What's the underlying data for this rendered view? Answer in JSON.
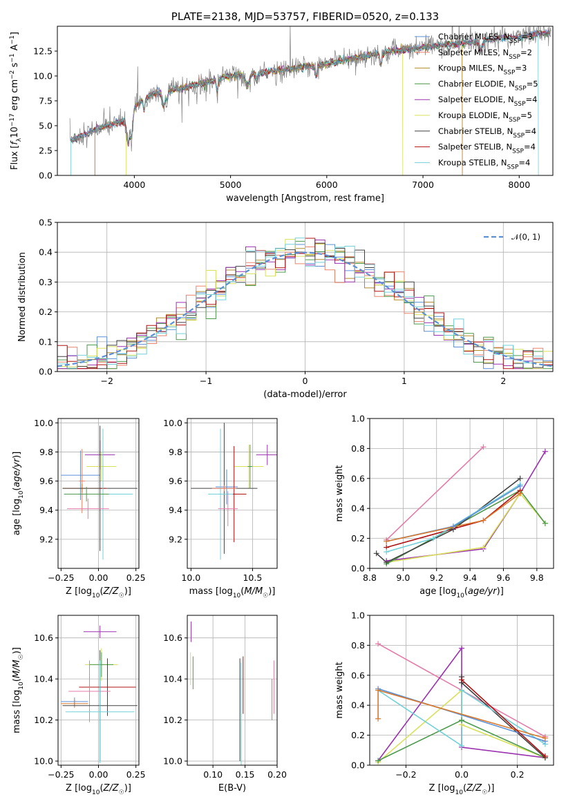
{
  "colors": {
    "Chabrier MILES": "#5b8fd6",
    "Salpeter MILES": "#e8836a",
    "Kroupa MILES": "#b08a2a",
    "Chabrier ELODIE": "#4c9a4c",
    "Salpeter ELODIE": "#9b30b0",
    "Kroupa ELODIE": "#d8e05a",
    "Chabrier STELIB": "#404040",
    "Salpeter STELIB": "#b01010",
    "Kroupa STELIB": "#70d0d8",
    "pink": "#e57aa8",
    "orange": "#d9782a",
    "normal": "#5b8fd6"
  },
  "chart_data": [
    {
      "id": "spectrum",
      "type": "line",
      "title": "PLATE=2138, MJD=53757, FIBERID=0520, z=0.133",
      "xlabel": "wavelength [Angstrom, rest frame]",
      "ylabel": "Flux [f_λ 10^-17 erg cm^-2 s^-1 A^-1]",
      "xlim": [
        3200,
        8350
      ],
      "ylim": [
        0,
        15
      ],
      "xticks": [
        "4000",
        "5000",
        "6000",
        "7000",
        "8000"
      ],
      "yticks": [
        "0.0",
        "2.5",
        "5.0",
        "7.5",
        "10.0",
        "12.5"
      ],
      "data_color": "#808080",
      "legend": [
        {
          "label": "Chabrier MILES, N_SSP=3"
        },
        {
          "label": "Salpeter MILES, N_SSP=2"
        },
        {
          "label": "Kroupa MILES, N_SSP=3"
        },
        {
          "label": "Chabrier ELODIE, N_SSP=5"
        },
        {
          "label": "Salpeter ELODIE, N_SSP=4"
        },
        {
          "label": "Kroupa ELODIE, N_SSP=5"
        },
        {
          "label": "Chabrier STELIB, N_SSP=4"
        },
        {
          "label": "Salpeter STELIB, N_SSP=4"
        },
        {
          "label": "Kroupa STELIB, N_SSP=4"
        }
      ],
      "continuum": [
        [
          3350,
          3.6
        ],
        [
          3500,
          4.2
        ],
        [
          3700,
          5.0
        ],
        [
          3900,
          5.5
        ],
        [
          4000,
          7.0
        ],
        [
          4200,
          8.2
        ],
        [
          4500,
          8.8
        ],
        [
          4800,
          9.5
        ],
        [
          5000,
          10.0
        ],
        [
          5300,
          10.3
        ],
        [
          5600,
          10.7
        ],
        [
          6000,
          11.2
        ],
        [
          6300,
          11.8
        ],
        [
          6600,
          12.4
        ],
        [
          7000,
          12.9
        ],
        [
          7400,
          13.3
        ],
        [
          7800,
          13.8
        ],
        [
          8000,
          13.9
        ],
        [
          8200,
          14.3
        ]
      ],
      "model_cutoffs": [
        {
          "model": "Salpeter MILES",
          "from": 3590,
          "to": 7410
        },
        {
          "model": "Kroupa MILES",
          "from": 3590,
          "to": 7410
        },
        {
          "model": "Kroupa ELODIE",
          "from": 3915,
          "to": 6790
        },
        {
          "model": "Kroupa STELIB",
          "from": 3340,
          "to": 8200
        }
      ]
    },
    {
      "id": "residuals",
      "type": "step",
      "xlabel": "(data-model)/error",
      "ylabel": "Normed distribution",
      "xlim": [
        -2.5,
        2.5
      ],
      "ylim": [
        0,
        0.5
      ],
      "xticks": [
        "−2",
        "−1",
        "0",
        "1",
        "2"
      ],
      "yticks": [
        "0.0",
        "0.1",
        "0.2",
        "0.3",
        "0.4",
        "0.5"
      ],
      "legend_label": "𝒩(0, 1)",
      "bin_width": 0.1
    },
    {
      "id": "age-vs-Z",
      "type": "errorbar",
      "xlabel": "Z [log10(Z/Z☉)]",
      "ylabel": "age  [log10(age/yr)]",
      "xlim": [
        -0.27,
        0.27
      ],
      "ylim": [
        9.0,
        10.03
      ],
      "xticks": [
        "−0.25",
        "0.00",
        "0.25"
      ],
      "yticks": [
        "9.2",
        "9.4",
        "9.6",
        "9.8",
        "10.0"
      ],
      "points": [
        {
          "c": "Salpeter ELODIE",
          "x": 0.01,
          "xerr": 0.1,
          "y": 9.78,
          "yerr": 0.1
        },
        {
          "c": "Kroupa ELODIE",
          "x": 0.02,
          "xerr": 0.1,
          "y": 9.7,
          "yerr": 0.1
        },
        {
          "c": "Chabrier MILES",
          "x": -0.12,
          "xerr": 0.13,
          "y": 9.64,
          "yerr": 0.17
        },
        {
          "c": "Salpeter MILES",
          "x": -0.11,
          "xerr": 0.02,
          "y": 9.6,
          "yerr": 0.22
        },
        {
          "c": "orange",
          "x": -0.11,
          "xerr": 0.13,
          "y": 9.55,
          "yerr": 0.03
        },
        {
          "c": "Chabrier STELIB",
          "x": 0.01,
          "xerr": 0.25,
          "y": 9.55,
          "yerr": 0.43
        },
        {
          "c": "Salpeter STELIB",
          "x": 0.03,
          "xerr": 0.02,
          "y": 9.55,
          "yerr": 0.4
        },
        {
          "c": "Kroupa STELIB",
          "x": 0.03,
          "xerr": 0.2,
          "y": 9.51,
          "yerr": 0.45
        },
        {
          "c": "Chabrier ELODIE",
          "x": -0.08,
          "xerr": 0.15,
          "y": 9.51,
          "yerr": 0.05
        },
        {
          "c": "pink",
          "x": -0.07,
          "xerr": 0.14,
          "y": 9.41,
          "yerr": 0.07
        }
      ]
    },
    {
      "id": "age-vs-mass",
      "type": "errorbar",
      "xlabel": "mass [log10(M/M☉)]",
      "ylabel": "",
      "xlim": [
        9.97,
        10.7
      ],
      "ylim": [
        9.0,
        10.03
      ],
      "xticks": [
        "10.0",
        "10.5"
      ],
      "yticks": [
        "9.2",
        "9.4",
        "9.6",
        "9.8",
        "10.0"
      ],
      "points": [
        {
          "c": "Salpeter ELODIE",
          "x": 10.62,
          "xerr": 0.09,
          "y": 9.78,
          "yerr": 0.07
        },
        {
          "c": "Kroupa ELODIE",
          "x": 10.47,
          "xerr": 0.12,
          "y": 9.7,
          "yerr": 0.15
        },
        {
          "c": "Chabrier MILES",
          "x": 10.29,
          "xerr": 0.09,
          "y": 9.56,
          "yerr": 0.12
        },
        {
          "c": "Chabrier STELIB",
          "x": 10.27,
          "xerr": 0.27,
          "y": 9.55,
          "yerr": 0.45
        },
        {
          "c": "Salpeter STELIB",
          "x": 10.35,
          "xerr": 0.1,
          "y": 9.51,
          "yerr": 0.33
        },
        {
          "c": "Kroupa STELIB",
          "x": 10.24,
          "xerr": 0.1,
          "y": 9.51,
          "yerr": 0.45
        },
        {
          "c": "Chabrier ELODIE",
          "x": 10.48,
          "xerr": 0.02,
          "y": 9.7,
          "yerr": 0.15
        },
        {
          "c": "pink",
          "x": 10.3,
          "xerr": 0.08,
          "y": 9.41,
          "yerr": 0.12
        },
        {
          "c": "Salpeter MILES",
          "x": 10.27,
          "xerr": 0.1,
          "y": 9.55,
          "yerr": 0.02
        }
      ]
    },
    {
      "id": "mass-weight-vs-age",
      "type": "line",
      "xlabel": "age  [log10(age/yr)]",
      "ylabel": "mass weight",
      "xlim": [
        8.8,
        9.9
      ],
      "ylim": [
        0,
        1.0
      ],
      "xticks": [
        "8.8",
        "9.0",
        "9.2",
        "9.4",
        "9.6",
        "9.8"
      ],
      "yticks": [
        "0.0",
        "0.2",
        "0.4",
        "0.6",
        "0.8",
        "1.0"
      ],
      "series": [
        {
          "c": "pink",
          "pts": [
            [
              8.9,
              0.19
            ],
            [
              9.48,
              0.81
            ]
          ]
        },
        {
          "c": "Salpeter ELODIE",
          "pts": [
            [
              8.9,
              0.05
            ],
            [
              9.48,
              0.13
            ],
            [
              9.7,
              0.5
            ],
            [
              9.85,
              0.78
            ]
          ]
        },
        {
          "c": "Kroupa ELODIE",
          "pts": [
            [
              8.9,
              0.04
            ],
            [
              9.48,
              0.14
            ],
            [
              9.7,
              0.5
            ],
            [
              9.85,
              0.3
            ]
          ]
        },
        {
          "c": "Chabrier ELODIE",
          "pts": [
            [
              8.9,
              0.03
            ],
            [
              9.7,
              0.52
            ],
            [
              9.85,
              0.3
            ]
          ]
        },
        {
          "c": "Chabrier STELIB",
          "pts": [
            [
              8.84,
              0.1
            ],
            [
              8.9,
              0.04
            ],
            [
              9.3,
              0.26
            ],
            [
              9.7,
              0.6
            ]
          ]
        },
        {
          "c": "Salpeter STELIB",
          "pts": [
            [
              8.9,
              0.14
            ],
            [
              9.48,
              0.32
            ],
            [
              9.7,
              0.52
            ]
          ]
        },
        {
          "c": "Kroupa STELIB",
          "pts": [
            [
              8.9,
              0.11
            ],
            [
              9.18,
              0.2
            ],
            [
              9.7,
              0.56
            ]
          ]
        },
        {
          "c": "Chabrier MILES",
          "pts": [
            [
              8.9,
              0.18
            ],
            [
              9.3,
              0.28
            ],
            [
              9.7,
              0.55
            ]
          ]
        },
        {
          "c": "orange",
          "pts": [
            [
              8.9,
              0.18
            ],
            [
              9.48,
              0.32
            ],
            [
              9.7,
              0.5
            ]
          ]
        }
      ]
    },
    {
      "id": "mass-vs-Z",
      "type": "errorbar",
      "xlabel": "Z [log10(Z/Z☉)]",
      "ylabel": "mass [log10(M/M☉)]",
      "xlim": [
        -0.27,
        0.27
      ],
      "ylim": [
        9.98,
        10.71
      ],
      "xticks": [
        "−0.25",
        "0.00",
        "0.25"
      ],
      "yticks": [
        "10.0",
        "10.2",
        "10.4",
        "10.6"
      ],
      "points": [
        {
          "c": "Salpeter ELODIE",
          "x": 0.01,
          "xerr": 0.11,
          "y": 10.63,
          "yerr": 0.03
        },
        {
          "c": "Kroupa ELODIE",
          "x": 0.02,
          "xerr": 0.11,
          "y": 10.47,
          "yerr": 0.08
        },
        {
          "c": "Chabrier ELODIE",
          "x": 0.02,
          "xerr": 0.08,
          "y": 10.47,
          "yerr": 0.06
        },
        {
          "c": "Salpeter STELIB",
          "x": 0.06,
          "xerr": 0.19,
          "y": 10.36,
          "yerr": 0.14
        },
        {
          "c": "pink",
          "x": -0.06,
          "xerr": 0.14,
          "y": 10.34,
          "yerr": 0.15
        },
        {
          "c": "Chabrier MILES",
          "x": -0.16,
          "xerr": 0.09,
          "y": 10.29,
          "yerr": 0.02
        },
        {
          "c": "orange",
          "x": -0.16,
          "xerr": 0.09,
          "y": 10.28,
          "yerr": 0.02
        },
        {
          "c": "Chabrier STELIB",
          "x": 0.01,
          "xerr": 0.25,
          "y": 10.27,
          "yerr": 0.27
        },
        {
          "c": "Kroupa STELIB",
          "x": 0.01,
          "xerr": 0.23,
          "y": 10.24,
          "yerr": 0.25
        }
      ]
    },
    {
      "id": "mass-vs-ebv",
      "type": "errorbar",
      "xlabel": "E(B-V)",
      "ylabel": "",
      "xlim": [
        0.06,
        0.2
      ],
      "ylim": [
        9.98,
        10.71
      ],
      "xticks": [
        "0.10",
        "0.15",
        "0.20"
      ],
      "yticks": [
        "10.0",
        "10.2",
        "10.4",
        "10.6"
      ],
      "points": [
        {
          "c": "Salpeter ELODIE",
          "x": 0.066,
          "xerr": 0,
          "y": 10.63,
          "yerr": 0.05
        },
        {
          "c": "Kroupa ELODIE",
          "x": 0.065,
          "xerr": 0,
          "y": 10.45,
          "yerr": 0.08
        },
        {
          "c": "Chabrier ELODIE",
          "x": 0.069,
          "xerr": 0,
          "y": 10.43,
          "yerr": 0.08
        },
        {
          "c": "Salpeter STELIB",
          "x": 0.147,
          "xerr": 0,
          "y": 10.37,
          "yerr": 0.14
        },
        {
          "c": "Chabrier STELIB",
          "x": 0.142,
          "xerr": 0,
          "y": 10.25,
          "yerr": 0.25
        },
        {
          "c": "Kroupa STELIB",
          "x": 0.144,
          "xerr": 0,
          "y": 10.23,
          "yerr": 0.25
        },
        {
          "c": "pink",
          "x": 0.195,
          "xerr": 0,
          "y": 10.36,
          "yerr": 0.13
        },
        {
          "c": "orange",
          "x": 0.192,
          "xerr": 0,
          "y": 10.3,
          "yerr": 0.1
        }
      ]
    },
    {
      "id": "mass-weight-vs-Z",
      "type": "line",
      "xlabel": "Z [log10(Z/Z☉)]",
      "ylabel": "mass weight",
      "xlim": [
        -0.33,
        0.33
      ],
      "ylim": [
        0,
        1.0
      ],
      "xticks": [
        "−0.2",
        "0.0",
        "0.2"
      ],
      "yticks": [
        "0.0",
        "0.2",
        "0.4",
        "0.6",
        "0.8",
        "1.0"
      ],
      "series": [
        {
          "c": "pink",
          "pts": [
            [
              -0.3,
              0.81
            ],
            [
              0.3,
              0.19
            ]
          ]
        },
        {
          "c": "Salpeter ELODIE",
          "pts": [
            [
              -0.3,
              0.03
            ],
            [
              0.0,
              0.78
            ],
            [
              0.0,
              0.12
            ],
            [
              0.3,
              0.05
            ]
          ]
        },
        {
          "c": "Kroupa ELODIE",
          "pts": [
            [
              -0.3,
              0.02
            ],
            [
              0.0,
              0.5
            ],
            [
              0.0,
              0.27
            ],
            [
              0.3,
              0.05
            ]
          ]
        },
        {
          "c": "Chabrier ELODIE",
          "pts": [
            [
              -0.3,
              0.03
            ],
            [
              0.0,
              0.3
            ],
            [
              0.3,
              0.05
            ]
          ]
        },
        {
          "c": "Chabrier STELIB",
          "pts": [
            [
              0.0,
              0.59
            ],
            [
              0.0,
              0.55
            ],
            [
              0.3,
              0.05
            ]
          ]
        },
        {
          "c": "Kroupa STELIB",
          "pts": [
            [
              -0.3,
              0.5
            ],
            [
              0.0,
              0.13
            ],
            [
              0.0,
              0.5
            ],
            [
              0.3,
              0.14
            ]
          ]
        },
        {
          "c": "Chabrier MILES",
          "pts": [
            [
              -0.3,
              0.51
            ],
            [
              0.3,
              0.16
            ]
          ]
        },
        {
          "c": "orange",
          "pts": [
            [
              -0.3,
              0.31
            ],
            [
              -0.3,
              0.5
            ],
            [
              0.3,
              0.18
            ]
          ]
        },
        {
          "c": "Salpeter STELIB",
          "pts": [
            [
              0.0,
              0.57
            ],
            [
              0.3,
              0.06
            ]
          ]
        }
      ]
    }
  ]
}
